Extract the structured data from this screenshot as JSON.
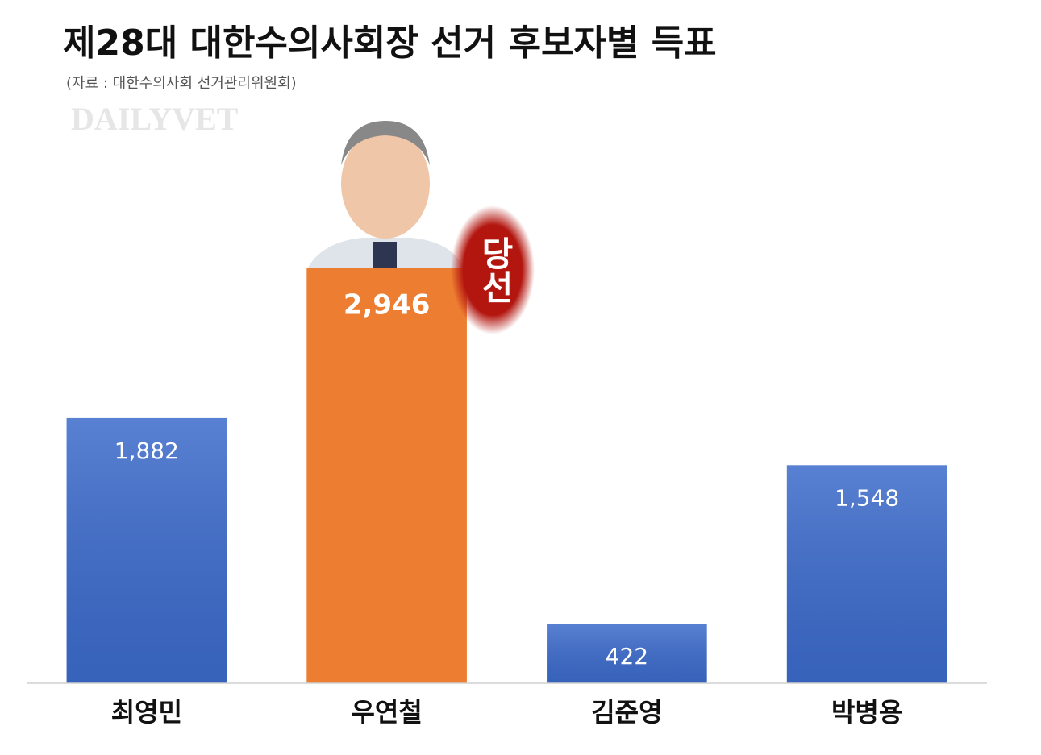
{
  "chart_data": {
    "type": "bar",
    "title": "제28대 대한수의사회장 선거 후보자별 득표",
    "subtitle": "(자료 : 대한수의사회 선거관리위원회)",
    "watermark": "DAILYVET",
    "annotation": "당선",
    "categories": [
      "최영민",
      "우연철",
      "김준영",
      "박병용"
    ],
    "values": [
      1882,
      2946,
      422,
      1548
    ],
    "value_labels": [
      "1,882",
      "2,946",
      "422",
      "1,548"
    ],
    "colors": [
      "#3c6bcb",
      "#ed7d31",
      "#3c6bcb",
      "#3c6bcb"
    ],
    "highlight": 1,
    "ylim": [
      0,
      3500
    ]
  }
}
